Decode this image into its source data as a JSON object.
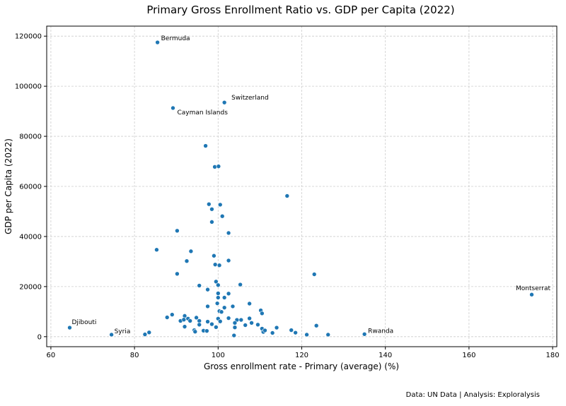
{
  "chart_data": {
    "type": "scatter",
    "title": "Primary Gross Enrollment Ratio vs. GDP per Capita (2022)",
    "xlabel": "Gross enrollment rate - Primary (average) (%)",
    "ylabel": "GDP per Capita (2022)",
    "xlim": [
      59,
      181
    ],
    "ylim": [
      -4000,
      124000
    ],
    "xticks": [
      60,
      80,
      100,
      120,
      140,
      160,
      180
    ],
    "yticks": [
      0,
      20000,
      40000,
      60000,
      80000,
      100000,
      120000
    ],
    "grid": true,
    "point_color": "#1f77b4",
    "footer": "Data: UN Data | Analysis: Exploralysis",
    "annotations": [
      {
        "label": "Bermuda",
        "x": 85.5,
        "y": 117500
      },
      {
        "label": "Switzerland",
        "x": 101.5,
        "y": 93500
      },
      {
        "label": "Cayman Islands",
        "x": 89.2,
        "y": 91300
      },
      {
        "label": "Montserrat",
        "x": 175.0,
        "y": 16800
      },
      {
        "label": "Djibouti",
        "x": 64.5,
        "y": 3600
      },
      {
        "label": "Syria",
        "x": 74.5,
        "y": 800
      },
      {
        "label": "Rwanda",
        "x": 135.0,
        "y": 1000
      }
    ],
    "points": [
      {
        "x": 85.5,
        "y": 117500
      },
      {
        "x": 101.5,
        "y": 93500
      },
      {
        "x": 89.2,
        "y": 91300
      },
      {
        "x": 175.0,
        "y": 16800
      },
      {
        "x": 64.5,
        "y": 3600
      },
      {
        "x": 74.5,
        "y": 800
      },
      {
        "x": 135.0,
        "y": 1000
      },
      {
        "x": 97.0,
        "y": 76200
      },
      {
        "x": 99.2,
        "y": 67800
      },
      {
        "x": 100.1,
        "y": 68000
      },
      {
        "x": 116.5,
        "y": 56200
      },
      {
        "x": 97.8,
        "y": 52900
      },
      {
        "x": 100.5,
        "y": 52700
      },
      {
        "x": 98.5,
        "y": 50900
      },
      {
        "x": 101.0,
        "y": 48100
      },
      {
        "x": 98.5,
        "y": 45800
      },
      {
        "x": 90.2,
        "y": 42300
      },
      {
        "x": 102.5,
        "y": 41400
      },
      {
        "x": 85.3,
        "y": 34700
      },
      {
        "x": 93.5,
        "y": 34100
      },
      {
        "x": 99.0,
        "y": 32300
      },
      {
        "x": 92.5,
        "y": 30200
      },
      {
        "x": 102.5,
        "y": 30400
      },
      {
        "x": 99.3,
        "y": 28800
      },
      {
        "x": 100.3,
        "y": 28500
      },
      {
        "x": 90.2,
        "y": 25100
      },
      {
        "x": 123.0,
        "y": 24900
      },
      {
        "x": 99.5,
        "y": 22000
      },
      {
        "x": 95.5,
        "y": 20400
      },
      {
        "x": 100.0,
        "y": 20600
      },
      {
        "x": 105.3,
        "y": 20800
      },
      {
        "x": 97.5,
        "y": 18800
      },
      {
        "x": 100.0,
        "y": 17300
      },
      {
        "x": 102.5,
        "y": 17200
      },
      {
        "x": 100.0,
        "y": 15600
      },
      {
        "x": 101.5,
        "y": 15600
      },
      {
        "x": 99.8,
        "y": 13300
      },
      {
        "x": 107.5,
        "y": 13200
      },
      {
        "x": 97.5,
        "y": 12100
      },
      {
        "x": 101.5,
        "y": 11600
      },
      {
        "x": 103.5,
        "y": 12100
      },
      {
        "x": 100.3,
        "y": 10200
      },
      {
        "x": 100.8,
        "y": 9900
      },
      {
        "x": 110.2,
        "y": 10500
      },
      {
        "x": 110.5,
        "y": 9300
      },
      {
        "x": 89.0,
        "y": 8800
      },
      {
        "x": 87.8,
        "y": 7700
      },
      {
        "x": 92.0,
        "y": 8300
      },
      {
        "x": 92.8,
        "y": 7200
      },
      {
        "x": 94.8,
        "y": 7600
      },
      {
        "x": 100.0,
        "y": 7200
      },
      {
        "x": 102.5,
        "y": 7400
      },
      {
        "x": 107.5,
        "y": 7300
      },
      {
        "x": 91.0,
        "y": 6300
      },
      {
        "x": 91.8,
        "y": 6800
      },
      {
        "x": 93.3,
        "y": 6300
      },
      {
        "x": 95.5,
        "y": 6300
      },
      {
        "x": 97.5,
        "y": 6000
      },
      {
        "x": 100.5,
        "y": 6100
      },
      {
        "x": 104.5,
        "y": 6700
      },
      {
        "x": 105.5,
        "y": 6700
      },
      {
        "x": 104.0,
        "y": 5500
      },
      {
        "x": 106.5,
        "y": 4600
      },
      {
        "x": 108.0,
        "y": 5500
      },
      {
        "x": 109.5,
        "y": 4800
      },
      {
        "x": 123.5,
        "y": 4400
      },
      {
        "x": 92.0,
        "y": 4000
      },
      {
        "x": 95.5,
        "y": 4800
      },
      {
        "x": 98.5,
        "y": 5000
      },
      {
        "x": 99.5,
        "y": 3800
      },
      {
        "x": 104.0,
        "y": 3700
      },
      {
        "x": 110.5,
        "y": 3200
      },
      {
        "x": 114.0,
        "y": 3600
      },
      {
        "x": 94.3,
        "y": 2600
      },
      {
        "x": 96.5,
        "y": 2400
      },
      {
        "x": 97.3,
        "y": 2300
      },
      {
        "x": 94.5,
        "y": 2000
      },
      {
        "x": 110.8,
        "y": 1900
      },
      {
        "x": 117.5,
        "y": 2600
      },
      {
        "x": 83.5,
        "y": 1700
      },
      {
        "x": 82.5,
        "y": 900
      },
      {
        "x": 111.2,
        "y": 2500
      },
      {
        "x": 113.0,
        "y": 1500
      },
      {
        "x": 118.5,
        "y": 1600
      },
      {
        "x": 121.2,
        "y": 800
      },
      {
        "x": 126.3,
        "y": 800
      },
      {
        "x": 103.8,
        "y": 500
      }
    ]
  }
}
